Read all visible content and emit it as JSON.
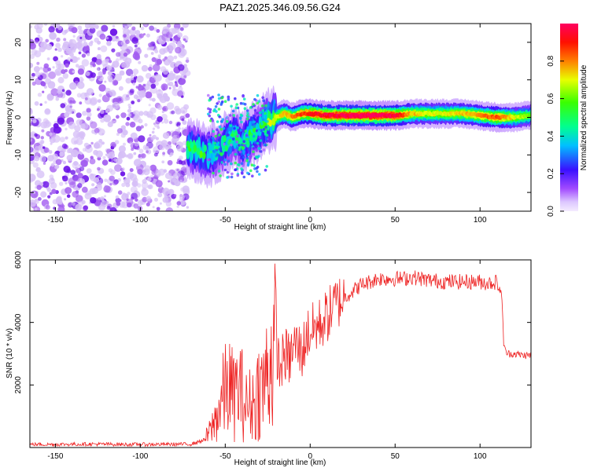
{
  "figure": {
    "title": "PAZ1.2025.346.09.56.G24"
  },
  "chart_data": [
    {
      "type": "heatmap",
      "name": "spectrogram",
      "title": "PAZ1.2025.346.09.56.G24",
      "xlabel": "Height of straight line (km)",
      "ylabel": "Frequency (Hz)",
      "xlim": [
        -165,
        130
      ],
      "ylim": [
        -25,
        25
      ],
      "x_ticks": [
        -150,
        -100,
        -50,
        0,
        50,
        100
      ],
      "y_ticks": [
        -20,
        -10,
        0,
        10,
        20
      ],
      "colorbar": {
        "label": "Normalized spectral amplitude",
        "range": [
          0,
          1
        ],
        "ticks": [
          "0.0",
          "0.2",
          "0.4",
          "0.6",
          "0.8"
        ],
        "tick_values": [
          0.0,
          0.2,
          0.4,
          0.6,
          0.8
        ],
        "colormap": "rainbow"
      },
      "ridge": {
        "description_points_x": [
          -72,
          -65,
          -60,
          -55,
          -50,
          -45,
          -40,
          -35,
          -30,
          -25,
          -20,
          -15,
          -10,
          -5,
          0,
          10,
          20,
          30,
          40,
          50,
          60,
          70,
          80,
          90,
          100,
          110,
          120,
          130
        ],
        "description_points_freq": [
          -8,
          -9,
          -10,
          -9,
          -7,
          -5,
          -7,
          -5,
          -3,
          -1,
          0,
          1,
          0,
          1,
          1,
          0.5,
          0.5,
          0.5,
          0.5,
          0.5,
          1,
          1,
          1,
          1,
          0.5,
          0,
          0,
          0.5
        ],
        "description_points_amp": [
          0.5,
          0.55,
          0.5,
          0.4,
          0.45,
          0.5,
          0.45,
          0.5,
          0.5,
          0.6,
          0.7,
          0.75,
          0.8,
          0.85,
          0.9,
          0.95,
          0.98,
          1.0,
          1.0,
          0.95,
          0.75,
          0.7,
          0.7,
          0.75,
          0.8,
          0.85,
          0.7,
          0.6
        ]
      }
    },
    {
      "type": "line",
      "name": "snr",
      "xlabel": "Height of straight line (km)",
      "ylabel": "SNR (10 * v/v)",
      "xlim": [
        -165,
        130
      ],
      "ylim": [
        0,
        6000
      ],
      "x_ticks": [
        -150,
        -100,
        -50,
        0,
        50,
        100
      ],
      "y_ticks": [
        2000,
        4000,
        6000
      ],
      "color": "#ee2222",
      "series": [
        {
          "name": "SNR",
          "x": [
            -165,
            -150,
            -130,
            -110,
            -90,
            -70,
            -62,
            -58,
            -55,
            -52,
            -50,
            -48,
            -45,
            -42,
            -40,
            -38,
            -35,
            -32,
            -30,
            -28,
            -25,
            -22,
            -20,
            -18,
            -15,
            -12,
            -10,
            -8,
            -5,
            -2,
            0,
            5,
            10,
            15,
            20,
            25,
            30,
            35,
            40,
            45,
            50,
            55,
            60,
            70,
            80,
            90,
            100,
            105,
            110,
            113,
            114,
            116,
            120,
            125,
            130
          ],
          "y": [
            100,
            100,
            110,
            100,
            100,
            110,
            250,
            600,
            1000,
            1500,
            1800,
            2000,
            1600,
            1900,
            1700,
            1300,
            1400,
            1500,
            2000,
            1800,
            2500,
            3000,
            3300,
            2500,
            3000,
            2800,
            3200,
            3300,
            3000,
            3600,
            3700,
            3900,
            4200,
            4600,
            4800,
            5000,
            5200,
            5300,
            5400,
            5400,
            5400,
            5400,
            5450,
            5350,
            5300,
            5300,
            5300,
            5250,
            5300,
            4800,
            3200,
            3000,
            3000,
            2950,
            2950
          ]
        }
      ]
    }
  ]
}
